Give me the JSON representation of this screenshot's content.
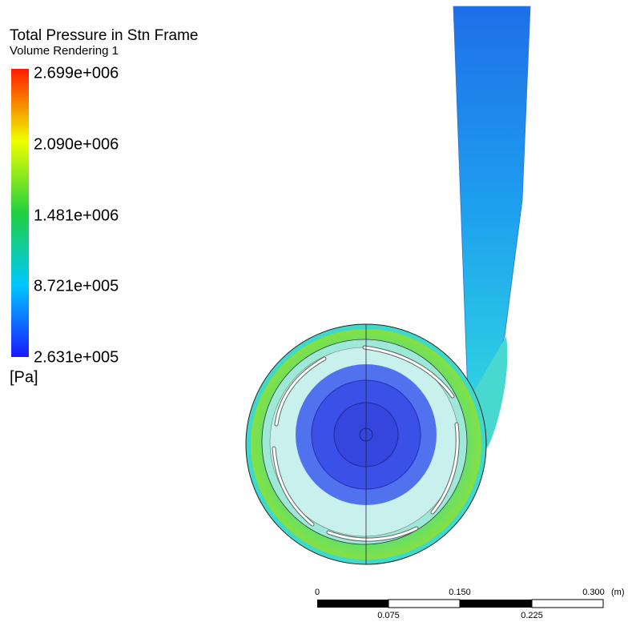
{
  "legend": {
    "title": "Total Pressure in Stn Frame",
    "subtitle": "Volume Rendering 1",
    "labels": [
      "2.699e+006",
      "2.090e+006",
      "1.481e+006",
      "8.721e+005",
      "2.631e+005"
    ],
    "unit": "[Pa]"
  },
  "scale": {
    "top_labels": [
      "0",
      "0.150",
      "0.300"
    ],
    "unit": "(m)",
    "bottom_labels": [
      "0.075",
      "0.225"
    ]
  }
}
